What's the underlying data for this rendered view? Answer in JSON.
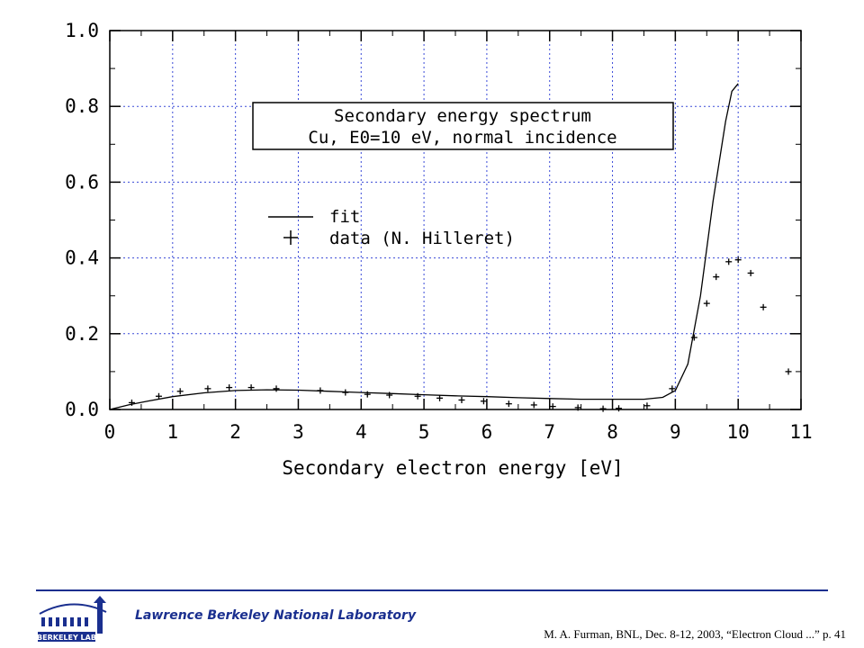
{
  "chart_data": {
    "type": "line",
    "title_lines": [
      "Secondary energy spectrum",
      "Cu, E0=10 eV, normal incidence"
    ],
    "xlabel": "Secondary electron energy [eV]",
    "ylabel": "",
    "xlim": [
      0,
      11
    ],
    "ylim": [
      0,
      1.0
    ],
    "x_ticks": [
      0,
      1,
      2,
      3,
      4,
      5,
      6,
      7,
      8,
      9,
      10,
      11
    ],
    "x_tick_labels": [
      "0",
      "1",
      "2",
      "3",
      "4",
      "5",
      "6",
      "7",
      "8",
      "9",
      "10",
      "11"
    ],
    "y_ticks": [
      0,
      0.2,
      0.4,
      0.6,
      0.8,
      1.0
    ],
    "y_tick_labels": [
      "0.0",
      "0.2",
      "0.4",
      "0.6",
      "0.8",
      "1.0"
    ],
    "grid": true,
    "legend_position": "upper-left",
    "series": [
      {
        "name": "fit",
        "style": "line",
        "x": [
          0,
          0.3,
          0.6,
          1.0,
          1.5,
          2.0,
          2.5,
          3.0,
          3.5,
          4.0,
          4.5,
          5.0,
          5.5,
          6.0,
          6.5,
          7.0,
          7.5,
          8.0,
          8.5,
          8.8,
          9.0,
          9.2,
          9.4,
          9.6,
          9.8,
          9.9,
          10.0
        ],
        "y": [
          0,
          0.012,
          0.022,
          0.034,
          0.044,
          0.05,
          0.052,
          0.051,
          0.048,
          0.045,
          0.042,
          0.039,
          0.036,
          0.034,
          0.031,
          0.029,
          0.027,
          0.027,
          0.027,
          0.032,
          0.05,
          0.12,
          0.3,
          0.55,
          0.76,
          0.84,
          0.86
        ]
      },
      {
        "name": "data (N. Hilleret)",
        "style": "markers",
        "marker": "+",
        "x": [
          0.35,
          0.78,
          1.12,
          1.56,
          1.9,
          2.25,
          2.65,
          3.35,
          3.75,
          4.1,
          4.45,
          4.9,
          5.25,
          5.6,
          5.95,
          6.35,
          6.75,
          7.05,
          7.45,
          7.85,
          8.1,
          8.55,
          8.95,
          9.3,
          9.5,
          9.65,
          9.85,
          10.0,
          10.2,
          10.4,
          10.8
        ],
        "y": [
          0.018,
          0.035,
          0.048,
          0.055,
          0.058,
          0.058,
          0.055,
          0.05,
          0.045,
          0.04,
          0.038,
          0.035,
          0.03,
          0.025,
          0.022,
          0.015,
          0.012,
          0.008,
          0.005,
          0.002,
          0.003,
          0.01,
          0.055,
          0.19,
          0.28,
          0.35,
          0.39,
          0.395,
          0.36,
          0.27,
          0.1
        ]
      }
    ],
    "legend_entries": [
      "fit",
      "data (N. Hilleret)"
    ]
  },
  "footer": {
    "lab_name": "Lawrence Berkeley National Laboratory",
    "citation": "M. A. Furman, BNL, Dec. 8-12, 2003, “Electron Cloud ...”  p. 41",
    "logo_text": "BERKELEY LAB"
  },
  "colors": {
    "grid": "#3a4ad8",
    "footer_accent": "#1a2f8f"
  }
}
